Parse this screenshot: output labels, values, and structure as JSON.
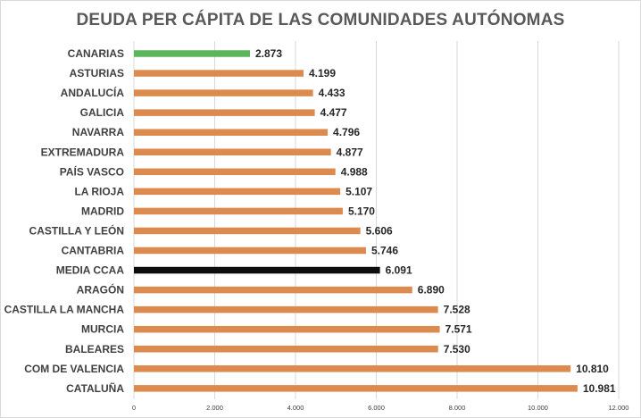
{
  "chart_data": {
    "type": "bar",
    "orientation": "horizontal",
    "title": "DEUDA PER CÁPITA DE LAS COMUNIDADES AUTÓNOMAS",
    "xlabel": "",
    "ylabel": "",
    "xlim": [
      0,
      12000
    ],
    "grid": true,
    "legend": "none",
    "categories": [
      "CANARIAS",
      "ASTURIAS",
      "ANDALUCÍA",
      "GALICIA",
      "NAVARRA",
      "EXTREMADURA",
      "PAÍS VASCO",
      "LA RIOJA",
      "MADRID",
      "CASTILLA Y LEÓN",
      "CANTABRIA",
      "MEDIA CCAA",
      "ARAGÓN",
      "CASTILLA LA MANCHA",
      "MURCIA",
      "BALEARES",
      "COM DE VALENCIA",
      "CATALUÑA"
    ],
    "values": [
      2873,
      4199,
      4433,
      4477,
      4796,
      4877,
      4988,
      5107,
      5170,
      5606,
      5746,
      6091,
      6890,
      7528,
      7571,
      7530,
      10810,
      10981
    ],
    "value_labels": [
      "2.873",
      "4.199",
      "4.433",
      "4.477",
      "4.796",
      "4.877",
      "4.988",
      "5.107",
      "5.170",
      "5.606",
      "5.746",
      "6.091",
      "6.890",
      "7.528",
      "7.571",
      "7.530",
      "10.810",
      "10.981"
    ],
    "colors": [
      "#5bb55b",
      "#dd8a4f",
      "#dd8a4f",
      "#dd8a4f",
      "#dd8a4f",
      "#dd8a4f",
      "#dd8a4f",
      "#dd8a4f",
      "#dd8a4f",
      "#dd8a4f",
      "#dd8a4f",
      "#0d0d0d",
      "#dd8a4f",
      "#dd8a4f",
      "#dd8a4f",
      "#dd8a4f",
      "#dd8a4f",
      "#dd8a4f"
    ],
    "x_ticks": [
      0,
      2000,
      4000,
      6000,
      8000,
      10000,
      12000
    ],
    "x_tick_labels": [
      "0",
      "2.000",
      "4.000",
      "6.000",
      "8.000",
      "10.000",
      "12.000"
    ]
  }
}
